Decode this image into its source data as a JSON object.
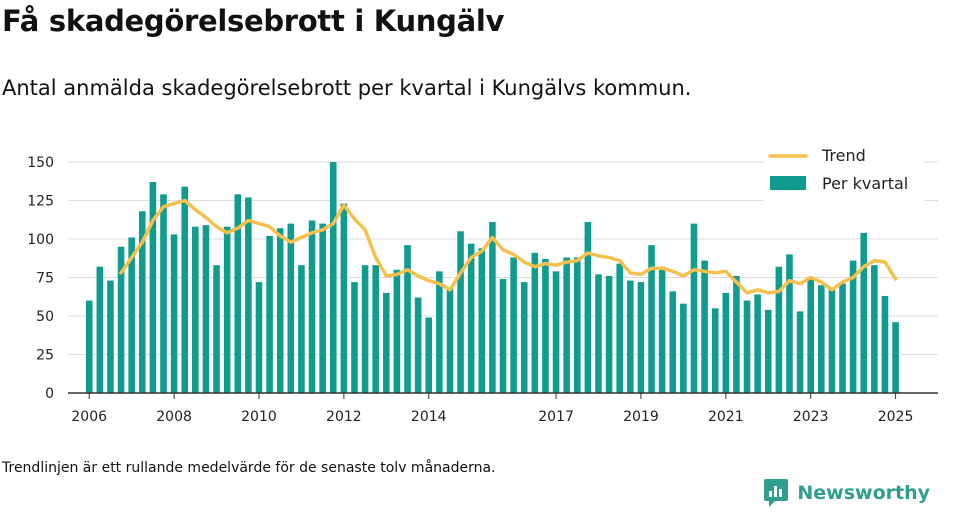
{
  "header": {
    "title": "Få skadegörelsebrott i Kungälv",
    "subtitle": "Antal anmälda skadegörelsebrott per kvartal i Kungälvs kommun."
  },
  "footnote": "Trendlinjen är ett rullande medelvärde för de senaste tolv månaderna.",
  "brand": {
    "name": "Newsworthy",
    "icon": "newsworthy-logo-icon"
  },
  "colors": {
    "bar": "#0f9b8e",
    "trend": "#f5c04e",
    "grid": "#dddddd",
    "axis": "#333333"
  },
  "chart_data": {
    "type": "bar",
    "x_start": 2006.0,
    "x_step": 0.25,
    "xlim": [
      2005.5,
      2026.0
    ],
    "ylim": [
      0,
      150
    ],
    "yticks": [
      0,
      25,
      50,
      75,
      100,
      125,
      150
    ],
    "xticks": [
      2006,
      2008,
      2010,
      2012,
      2014,
      2017,
      2019,
      2021,
      2023,
      2025
    ],
    "grid": true,
    "legend_position": "top-right",
    "series": [
      {
        "name": "Per kvartal",
        "type": "bar",
        "values": [
          60,
          82,
          73,
          95,
          101,
          118,
          137,
          129,
          103,
          134,
          108,
          109,
          83,
          108,
          129,
          127,
          72,
          102,
          107,
          110,
          83,
          112,
          110,
          150,
          123,
          72,
          83,
          83,
          65,
          80,
          96,
          62,
          49,
          79,
          68,
          105,
          97,
          94,
          111,
          74,
          88,
          72,
          91,
          87,
          79,
          88,
          88,
          111,
          77,
          76,
          84,
          73,
          72,
          96,
          82,
          66,
          58,
          110,
          86,
          55,
          65,
          76,
          60,
          64,
          54,
          82,
          90,
          53,
          74,
          70,
          68,
          71,
          86,
          104,
          83,
          63,
          46
        ]
      },
      {
        "name": "Trend",
        "type": "line",
        "x_start": 2006.75,
        "values": [
          78,
          88,
          98,
          112,
          121,
          123,
          125,
          119,
          114,
          108,
          104,
          107,
          112,
          110,
          108,
          102,
          98,
          101,
          104,
          106,
          110,
          122,
          113,
          106,
          88,
          76,
          77,
          80,
          76,
          73,
          71,
          67,
          78,
          88,
          92,
          101,
          93,
          90,
          85,
          82,
          84,
          83,
          85,
          86,
          91,
          89,
          88,
          86,
          78,
          77,
          81,
          81,
          79,
          76,
          80,
          79,
          78,
          79,
          72,
          65,
          67,
          65,
          66,
          73,
          71,
          75,
          72,
          67,
          72,
          75,
          82,
          86,
          85,
          74
        ]
      }
    ]
  }
}
